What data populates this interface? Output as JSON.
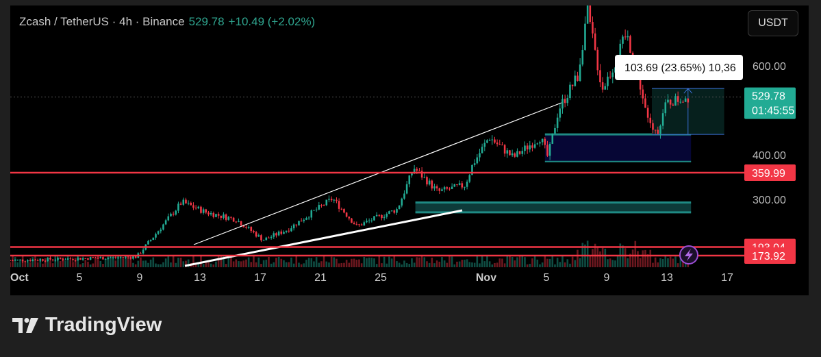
{
  "header": {
    "symbol": "Zcash / TetherUS · 4h · Binance",
    "price": "529.78",
    "change": "+10.49 (+2.02%)"
  },
  "currency_button": "USDT",
  "measure_label": "103.69 (23.65%) 10,36",
  "price_axis": {
    "ticks": [
      "600.00",
      "400.00",
      "300.00"
    ],
    "tick_values": [
      600,
      400,
      300
    ]
  },
  "price_labels": [
    {
      "value": 529.78,
      "text": "529.78",
      "sub": "01:45:55",
      "color": "#22ab94"
    },
    {
      "value": 359.99,
      "text": "359.99",
      "color": "#f23645"
    },
    {
      "value": 193.04,
      "text": "193.04",
      "color": "#f23645"
    },
    {
      "value": 173.92,
      "text": "173.92",
      "color": "#f23645"
    }
  ],
  "time_axis": [
    {
      "day": 0,
      "label": "Oct"
    },
    {
      "day": 4,
      "label": "5"
    },
    {
      "day": 8,
      "label": "9"
    },
    {
      "day": 12,
      "label": "13"
    },
    {
      "day": 16,
      "label": "17"
    },
    {
      "day": 20,
      "label": "21"
    },
    {
      "day": 24,
      "label": "25"
    },
    {
      "day": 31,
      "label": "Nov"
    },
    {
      "day": 35,
      "label": "5"
    },
    {
      "day": 39,
      "label": "9"
    },
    {
      "day": 43,
      "label": "13"
    },
    {
      "day": 47,
      "label": "17"
    }
  ],
  "price_path": [
    [
      -0.6,
      163
    ],
    [
      7.8,
      171
    ],
    [
      10.8,
      294
    ],
    [
      12.4,
      271
    ],
    [
      14.4,
      255
    ],
    [
      16.2,
      209
    ],
    [
      17.8,
      232
    ],
    [
      20.8,
      302
    ],
    [
      22.4,
      240
    ],
    [
      25.1,
      278
    ],
    [
      26.2,
      371
    ],
    [
      27.8,
      317
    ],
    [
      29.6,
      332
    ],
    [
      30.1,
      378
    ],
    [
      31.2,
      440
    ],
    [
      32.8,
      394
    ],
    [
      34.6,
      440
    ],
    [
      35.1,
      394
    ],
    [
      35.8,
      502
    ],
    [
      37.1,
      578
    ],
    [
      37.7,
      725
    ],
    [
      38.7,
      548
    ],
    [
      39.6,
      609
    ],
    [
      40.3,
      671
    ],
    [
      41,
      594
    ],
    [
      41.7,
      478
    ],
    [
      42.3,
      448
    ],
    [
      43.0,
      517
    ],
    [
      44.4,
      530
    ]
  ],
  "colors": {
    "up": "#22ab94",
    "down": "#f23645",
    "bg": "#000000"
  },
  "footer": {
    "brand": "TradingView"
  },
  "icons": {
    "alert": "lightning-icon"
  }
}
